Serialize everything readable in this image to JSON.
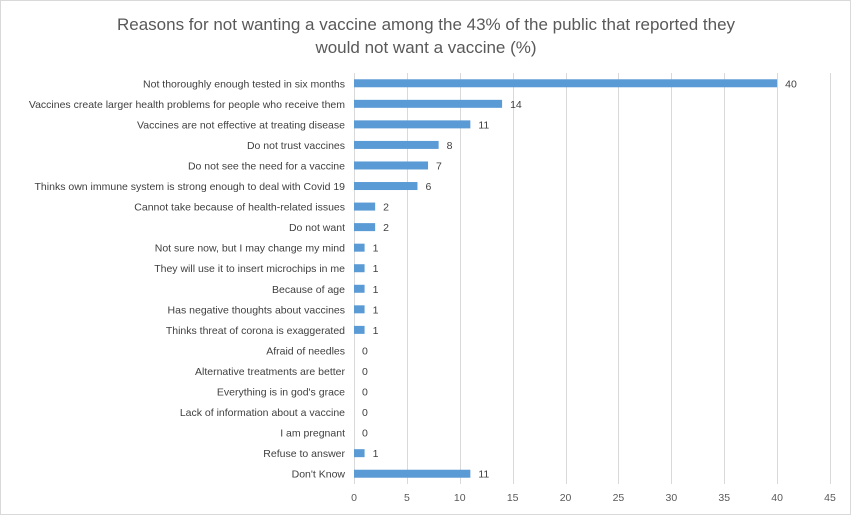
{
  "chart_data": {
    "type": "bar",
    "orientation": "horizontal",
    "title_lines": [
      "Reasons for not wanting a vaccine among the 43% of the public that reported they",
      "would not want a vaccine (%)"
    ],
    "categories": [
      "Not thoroughly enough tested in six months",
      "Vaccines create larger health problems for people who receive them",
      "Vaccines are not effective at treating disease",
      "Do not trust vaccines",
      "Do not see the need for a vaccine",
      "Thinks own immune system is strong enough to deal with Covid 19",
      "Cannot take because of health-related issues",
      "Do not want",
      "Not sure now, but I may change my mind",
      "They will use it to insert microchips in me",
      "Because of age",
      "Has negative thoughts about vaccines",
      "Thinks threat of corona is exaggerated",
      "Afraid of needles",
      "Alternative treatments are better",
      "Everything is in god's grace",
      "Lack of information about a vaccine",
      "I am pregnant",
      "Refuse to answer",
      "Don't Know"
    ],
    "values": [
      40,
      14,
      11,
      8,
      7,
      6,
      2,
      2,
      1,
      1,
      1,
      1,
      1,
      0,
      0,
      0,
      0,
      0,
      1,
      11
    ],
    "xlim": [
      0,
      45
    ],
    "xticks": [
      "0",
      "5",
      "10",
      "15",
      "20",
      "25",
      "30",
      "35",
      "40",
      "45"
    ],
    "xtick_values": [
      0,
      5,
      10,
      15,
      20,
      25,
      30,
      35,
      40,
      45
    ],
    "grid": true,
    "bar_color": "#5b9bd5",
    "xlabel": "",
    "ylabel": ""
  }
}
